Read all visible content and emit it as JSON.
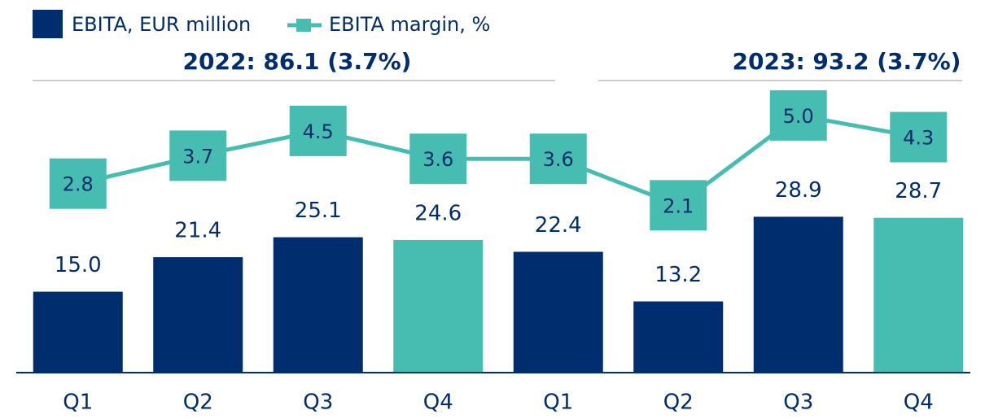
{
  "chart_data": {
    "type": "bar",
    "categories": [
      "Q1",
      "Q2",
      "Q3",
      "Q4",
      "Q1",
      "Q2",
      "Q3",
      "Q4"
    ],
    "annotations": [
      "2022: 86.1 (3.7%)",
      "2023: 93.2 (3.7%)"
    ],
    "series": [
      {
        "name": "EBITA, EUR million",
        "type": "bar",
        "color": "#002d6e",
        "colors": [
          "#002d6e",
          "#002d6e",
          "#002d6e",
          "#47bdb1",
          "#002d6e",
          "#002d6e",
          "#002d6e",
          "#47bdb1"
        ],
        "values": [
          15,
          21.4,
          25.1,
          24.6,
          22.4,
          13.2,
          28.9,
          28.7
        ],
        "value_labels": [
          "15.0",
          "21.4",
          "25.1",
          "24.6",
          "22.4",
          "13.2",
          "28.9",
          "28.7"
        ]
      },
      {
        "name": "EBITA margin, %",
        "type": "line",
        "axis": "y2",
        "color": "#47bdb1",
        "values": [
          2.8,
          3.7,
          4.5,
          3.6,
          3.6,
          2.1,
          5,
          4.3
        ],
        "value_labels": [
          "2.8",
          "3.7",
          "4.5",
          "3.6",
          "3.6",
          "2.1",
          "5.0",
          "4.3"
        ]
      }
    ],
    "ylim": [
      0,
      54
    ],
    "y2lim": [
      -3.3,
      6.1
    ]
  }
}
